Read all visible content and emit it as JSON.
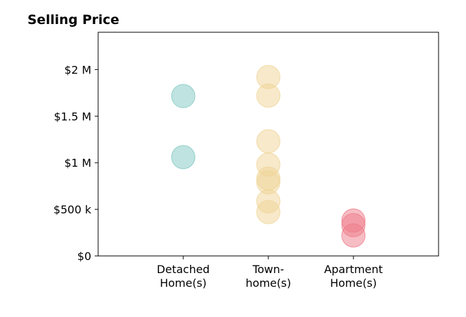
{
  "chart_data": {
    "type": "scatter",
    "title": "Selling Price",
    "xlabel": "",
    "ylabel": "",
    "ylim": [
      0,
      2400000
    ],
    "grid": false,
    "categories": [
      {
        "lines": [
          "Detached",
          "Home(s)"
        ]
      },
      {
        "lines": [
          "Town-",
          "home(s)"
        ]
      },
      {
        "lines": [
          "Apartment",
          "Home(s)"
        ]
      }
    ],
    "yticks": [
      {
        "value": 0,
        "label": "$0"
      },
      {
        "value": 500000,
        "label": "$500 k"
      },
      {
        "value": 1000000,
        "label": "$1 M"
      },
      {
        "value": 1500000,
        "label": "$1.5 M"
      },
      {
        "value": 2000000,
        "label": "$2 M"
      }
    ],
    "series": [
      {
        "category": 0,
        "color": "#7fc7c2",
        "values": [
          1715000,
          1060000
        ]
      },
      {
        "category": 1,
        "color": "#f0d496",
        "values": [
          1920000,
          1720000,
          1230000,
          980000,
          830000,
          790000,
          585000,
          470000
        ]
      },
      {
        "category": 2,
        "color": "#ee7b8a",
        "values": [
          380000,
          330000,
          220000
        ]
      }
    ]
  }
}
